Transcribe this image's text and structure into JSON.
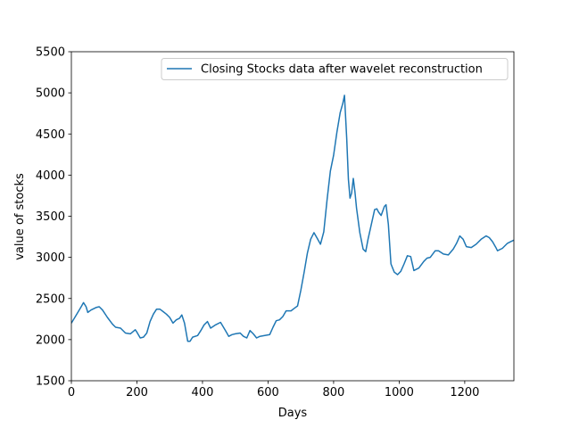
{
  "chart_data": {
    "type": "line",
    "title": "",
    "xlabel": "Days",
    "ylabel": "value of stocks",
    "xlim": [
      0,
      1350
    ],
    "ylim": [
      1500,
      5500
    ],
    "xticks": [
      0,
      200,
      400,
      600,
      800,
      1000,
      1200
    ],
    "yticks": [
      1500,
      2000,
      2500,
      3000,
      3500,
      4000,
      4500,
      5000,
      5500
    ],
    "grid": false,
    "legend_position": "upper right",
    "series": [
      {
        "name": "Closing Stocks data after wavelet reconstruction",
        "color": "#1f77b4",
        "x": [
          0,
          15,
          30,
          37,
          45,
          50,
          60,
          75,
          85,
          95,
          110,
          125,
          135,
          150,
          165,
          180,
          195,
          200,
          210,
          220,
          230,
          240,
          250,
          260,
          270,
          280,
          290,
          300,
          310,
          320,
          330,
          337,
          345,
          355,
          362,
          370,
          385,
          395,
          405,
          415,
          425,
          440,
          455,
          470,
          480,
          490,
          500,
          515,
          525,
          535,
          545,
          555,
          565,
          575,
          590,
          605,
          615,
          625,
          635,
          645,
          655,
          670,
          680,
          690,
          700,
          710,
          720,
          730,
          740,
          750,
          760,
          770,
          780,
          790,
          800,
          810,
          820,
          828,
          833,
          840,
          845,
          850,
          855,
          860,
          865,
          870,
          880,
          890,
          898,
          905,
          915,
          925,
          932,
          937,
          945,
          955,
          960,
          967,
          975,
          985,
          995,
          1005,
          1015,
          1025,
          1035,
          1045,
          1060,
          1075,
          1085,
          1095,
          1110,
          1120,
          1135,
          1150,
          1165,
          1175,
          1185,
          1195,
          1205,
          1220,
          1235,
          1250,
          1265,
          1275,
          1285,
          1295,
          1300,
          1315,
          1330,
          1340,
          1350
        ],
        "y": [
          2200,
          2300,
          2400,
          2450,
          2400,
          2330,
          2360,
          2390,
          2400,
          2360,
          2270,
          2190,
          2150,
          2140,
          2080,
          2070,
          2120,
          2090,
          2020,
          2030,
          2080,
          2220,
          2310,
          2370,
          2370,
          2340,
          2310,
          2270,
          2200,
          2240,
          2260,
          2300,
          2200,
          1980,
          1980,
          2030,
          2050,
          2110,
          2180,
          2220,
          2140,
          2180,
          2210,
          2110,
          2040,
          2060,
          2070,
          2080,
          2040,
          2020,
          2110,
          2070,
          2020,
          2040,
          2050,
          2060,
          2150,
          2230,
          2240,
          2280,
          2350,
          2350,
          2380,
          2410,
          2600,
          2820,
          3050,
          3220,
          3300,
          3230,
          3160,
          3310,
          3700,
          4050,
          4240,
          4520,
          4760,
          4870,
          4970,
          4450,
          3950,
          3720,
          3780,
          3960,
          3800,
          3600,
          3300,
          3100,
          3070,
          3220,
          3400,
          3580,
          3590,
          3550,
          3510,
          3620,
          3640,
          3400,
          2920,
          2820,
          2790,
          2830,
          2920,
          3020,
          3010,
          2840,
          2870,
          2950,
          2990,
          3000,
          3080,
          3080,
          3040,
          3030,
          3100,
          3170,
          3260,
          3220,
          3130,
          3120,
          3160,
          3220,
          3260,
          3240,
          3190,
          3120,
          3080,
          3110,
          3170,
          3190,
          3210
        ]
      }
    ]
  }
}
